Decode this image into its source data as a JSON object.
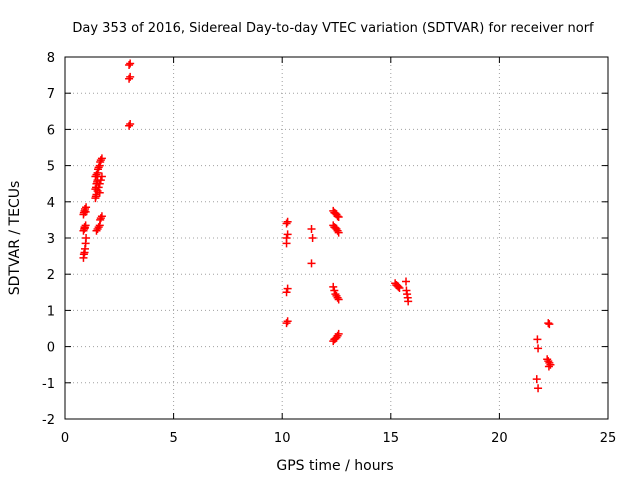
{
  "chart_data": {
    "type": "scatter",
    "title": "Day 353 of 2016, Sidereal Day-to-day VTEC variation (SDTVAR) for receiver norf",
    "xlabel": "GPS time / hours",
    "ylabel": "SDTVAR / TECUs",
    "xlim": [
      0,
      25
    ],
    "ylim": [
      -2,
      8
    ],
    "xticks": [
      0,
      5,
      10,
      15,
      20,
      25
    ],
    "yticks": [
      -2,
      -1,
      0,
      1,
      2,
      3,
      4,
      5,
      6,
      7,
      8
    ],
    "grid": true,
    "marker": "plus",
    "colors": {
      "points": "#ff0000",
      "grid": "#a0a0a0",
      "frame": "#000000"
    },
    "series": [
      {
        "name": "SDTVAR",
        "points": [
          [
            0.85,
            2.45
          ],
          [
            0.87,
            2.55
          ],
          [
            0.9,
            2.6
          ],
          [
            0.92,
            2.7
          ],
          [
            0.95,
            2.85
          ],
          [
            0.97,
            3.0
          ],
          [
            0.85,
            3.2
          ],
          [
            0.88,
            3.25
          ],
          [
            0.9,
            3.3
          ],
          [
            0.92,
            3.28
          ],
          [
            0.95,
            3.35
          ],
          [
            0.85,
            3.65
          ],
          [
            0.87,
            3.7
          ],
          [
            0.9,
            3.75
          ],
          [
            0.92,
            3.8
          ],
          [
            0.95,
            3.72
          ],
          [
            0.97,
            3.85
          ],
          [
            1.4,
            4.1
          ],
          [
            1.42,
            4.15
          ],
          [
            1.45,
            4.2
          ],
          [
            1.4,
            4.35
          ],
          [
            1.43,
            4.4
          ],
          [
            1.45,
            4.5
          ],
          [
            1.48,
            4.55
          ],
          [
            1.5,
            4.6
          ],
          [
            1.4,
            4.7
          ],
          [
            1.45,
            4.75
          ],
          [
            1.5,
            4.8
          ],
          [
            1.52,
            4.9
          ],
          [
            1.55,
            4.95
          ],
          [
            1.6,
            5.0
          ],
          [
            1.62,
            5.1
          ],
          [
            1.65,
            5.15
          ],
          [
            1.7,
            5.2
          ],
          [
            1.5,
            4.3
          ],
          [
            1.55,
            4.4
          ],
          [
            1.6,
            4.5
          ],
          [
            1.65,
            4.6
          ],
          [
            1.7,
            4.7
          ],
          [
            1.6,
            4.25
          ],
          [
            1.45,
            3.2
          ],
          [
            1.5,
            3.25
          ],
          [
            1.55,
            3.3
          ],
          [
            1.6,
            3.35
          ],
          [
            1.62,
            3.5
          ],
          [
            1.65,
            3.55
          ],
          [
            1.7,
            3.6
          ],
          [
            2.95,
            7.78
          ],
          [
            3.0,
            7.82
          ],
          [
            2.95,
            7.4
          ],
          [
            3.0,
            7.45
          ],
          [
            2.95,
            6.1
          ],
          [
            3.0,
            6.15
          ],
          [
            10.2,
            3.4
          ],
          [
            10.25,
            3.45
          ],
          [
            10.2,
            3.0
          ],
          [
            10.25,
            3.1
          ],
          [
            10.2,
            2.85
          ],
          [
            10.2,
            1.5
          ],
          [
            10.25,
            1.6
          ],
          [
            10.2,
            0.65
          ],
          [
            10.25,
            0.7
          ],
          [
            11.35,
            3.25
          ],
          [
            11.4,
            3.0
          ],
          [
            11.35,
            2.3
          ],
          [
            12.35,
            3.75
          ],
          [
            12.4,
            3.7
          ],
          [
            12.45,
            3.68
          ],
          [
            12.5,
            3.65
          ],
          [
            12.55,
            3.6
          ],
          [
            12.6,
            3.58
          ],
          [
            12.35,
            3.35
          ],
          [
            12.4,
            3.3
          ],
          [
            12.45,
            3.28
          ],
          [
            12.5,
            3.25
          ],
          [
            12.55,
            3.2
          ],
          [
            12.6,
            3.15
          ],
          [
            12.35,
            1.65
          ],
          [
            12.4,
            1.55
          ],
          [
            12.45,
            1.45
          ],
          [
            12.5,
            1.4
          ],
          [
            12.55,
            1.35
          ],
          [
            12.6,
            1.3
          ],
          [
            12.35,
            0.15
          ],
          [
            12.4,
            0.2
          ],
          [
            12.45,
            0.22
          ],
          [
            12.5,
            0.25
          ],
          [
            12.55,
            0.3
          ],
          [
            12.6,
            0.35
          ],
          [
            15.2,
            1.75
          ],
          [
            15.25,
            1.7
          ],
          [
            15.3,
            1.68
          ],
          [
            15.35,
            1.65
          ],
          [
            15.4,
            1.62
          ],
          [
            15.7,
            1.8
          ],
          [
            15.72,
            1.55
          ],
          [
            15.75,
            1.45
          ],
          [
            15.78,
            1.35
          ],
          [
            15.8,
            1.25
          ],
          [
            21.75,
            0.2
          ],
          [
            21.78,
            -0.05
          ],
          [
            21.72,
            -0.9
          ],
          [
            21.78,
            -1.15
          ],
          [
            22.25,
            0.65
          ],
          [
            22.3,
            0.62
          ],
          [
            22.2,
            -0.35
          ],
          [
            22.25,
            -0.4
          ],
          [
            22.3,
            -0.45
          ],
          [
            22.35,
            -0.5
          ],
          [
            22.28,
            -0.55
          ]
        ]
      }
    ]
  }
}
